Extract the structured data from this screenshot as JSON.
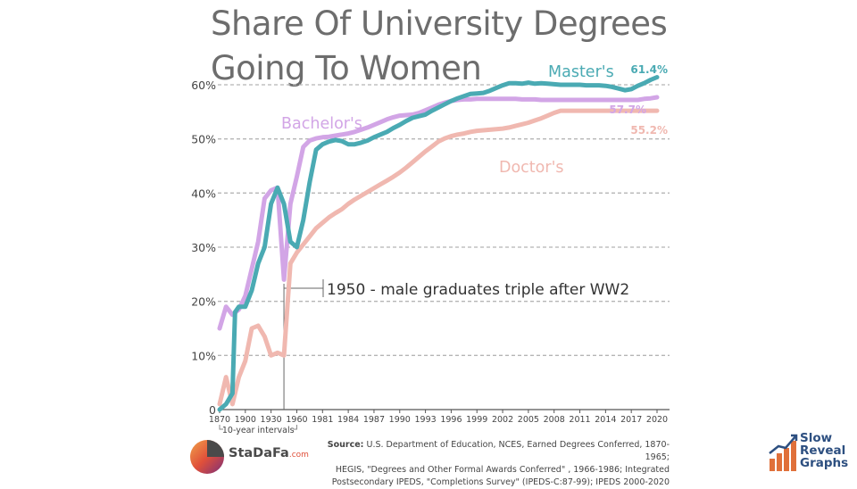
{
  "title": [
    "Share Of University Degrees",
    "Going To Women"
  ],
  "source_label": "Source:",
  "source_lines": [
    "U.S. Department of Education, NCES, Earned Degrees Conferred, 1870-1965;",
    "HEGIS, \"Degrees and Other Formal Awards Conferred\" , 1966-1986; Integrated",
    "Postsecondary IPEDS, \"Completions Survey\" (IPEDS-C:87-99); IPEDS 2000-2020"
  ],
  "brand_left": {
    "name": "StaDaFa",
    "suffix": ".com"
  },
  "brand_right": {
    "lines": [
      "Slow",
      "Reveal",
      "Graphs"
    ]
  },
  "colors": {
    "masters": "#4aaab3",
    "bachelors": "#d2a5e6",
    "doctors": "#f0b8b0",
    "grid": "#b5b5b5",
    "axis": "#555555",
    "annotation": "#555555"
  },
  "chart_data": {
    "type": "line",
    "title": "Share Of University Degrees Going To Women",
    "xlabel": "",
    "ylabel": "",
    "ylim": [
      0,
      60
    ],
    "yticks": [
      0,
      10,
      20,
      30,
      40,
      50,
      60
    ],
    "ytick_labels": [
      "0",
      "10%",
      "20%",
      "30%",
      "40%",
      "50%",
      "60%"
    ],
    "xtick_labels": [
      "1870",
      "1900",
      "1930",
      "1960",
      "1981",
      "1984",
      "1987",
      "1990",
      "1993",
      "1996",
      "1999",
      "2002",
      "2005",
      "2008",
      "2011",
      "2014",
      "2017",
      "2020"
    ],
    "x_note": "10-year intervals",
    "annotation": "1950 - male graduates triple after WW2",
    "annotation_x_index": 5,
    "grid": true,
    "series": [
      {
        "name": "Master's",
        "end_label": "61.4%",
        "x": [
          0,
          0.5,
          1,
          1.2,
          1.5,
          2,
          2.5,
          3,
          3.5,
          4,
          4.5,
          5,
          5.5,
          6,
          6.5,
          7,
          7.5,
          8,
          8.5,
          9,
          9.5,
          10,
          10.5,
          11,
          11.5,
          12,
          12.5,
          13,
          13.5,
          14,
          14.5,
          15,
          15.5,
          16,
          16.5,
          17,
          17.5,
          18,
          18.5,
          19,
          19.5,
          20,
          20.5,
          21,
          21.5,
          22,
          22.5,
          23,
          23.5,
          24,
          24.5,
          25,
          25.5,
          26,
          26.5,
          27,
          27.5,
          28,
          28.5,
          29,
          29.5,
          30,
          30.5,
          31,
          31.5,
          32,
          32.5,
          33,
          33.5,
          34
        ],
        "values": [
          0,
          1,
          3,
          18,
          19,
          19,
          22,
          27,
          30,
          38,
          41,
          38,
          31,
          30,
          35,
          42,
          48,
          49,
          49.5,
          49.8,
          49.6,
          49,
          49,
          49.3,
          49.7,
          50.3,
          50.8,
          51.3,
          52,
          52.6,
          53.3,
          53.9,
          54.2,
          54.5,
          55.2,
          55.8,
          56.4,
          57,
          57.5,
          57.9,
          58.3,
          58.4,
          58.5,
          58.9,
          59.4,
          59.9,
          60.3,
          60.3,
          60.2,
          60.4,
          60.2,
          60.3,
          60.2,
          60.1,
          60,
          60,
          60,
          60,
          59.9,
          59.9,
          59.9,
          59.8,
          59.6,
          59.3,
          59,
          59.2,
          59.8,
          60.3,
          60.9,
          61.4
        ]
      },
      {
        "name": "Bachelor's",
        "end_label": "57.7%",
        "x": [
          0,
          0.5,
          1,
          1.5,
          2,
          2.5,
          3,
          3.5,
          4,
          4.5,
          5,
          5.5,
          6,
          6.5,
          7,
          7.5,
          8,
          8.5,
          9,
          9.5,
          10,
          10.5,
          11,
          11.5,
          12,
          12.5,
          13,
          13.5,
          14,
          14.5,
          15,
          15.5,
          16,
          16.5,
          17,
          17.5,
          18,
          18.5,
          19,
          19.5,
          20,
          20.5,
          21,
          21.5,
          22,
          22.5,
          23,
          23.5,
          24,
          24.5,
          25,
          25.5,
          26,
          26.5,
          27,
          27.5,
          28,
          28.5,
          29,
          29.5,
          30,
          30.5,
          31,
          31.5,
          32,
          32.5,
          33,
          33.5,
          34
        ],
        "values": [
          15,
          19,
          17.5,
          18.5,
          21,
          26,
          31,
          39,
          40.5,
          41,
          24,
          38,
          43,
          48.5,
          49.7,
          50.1,
          50.3,
          50.4,
          50.6,
          50.8,
          51,
          51.3,
          51.7,
          52.1,
          52.6,
          53.1,
          53.6,
          54,
          54.3,
          54.4,
          54.5,
          54.8,
          55.3,
          55.8,
          56.3,
          56.7,
          57,
          57.2,
          57.3,
          57.3,
          57.4,
          57.4,
          57.4,
          57.4,
          57.4,
          57.4,
          57.4,
          57.3,
          57.3,
          57.3,
          57.2,
          57.2,
          57.2,
          57.2,
          57.2,
          57.2,
          57.2,
          57.2,
          57.2,
          57.2,
          57.2,
          57.2,
          57.2,
          57.2,
          57.2,
          57.2,
          57.4,
          57.5,
          57.7
        ]
      },
      {
        "name": "Doctor's",
        "end_label": "55.2%",
        "x": [
          0,
          0.5,
          1,
          1.5,
          2,
          2.5,
          3,
          3.5,
          4,
          4.5,
          5,
          5.5,
          6,
          6.5,
          7,
          7.5,
          8,
          8.5,
          9,
          9.5,
          10,
          10.5,
          11,
          11.5,
          12,
          12.5,
          13,
          13.5,
          14,
          14.5,
          15,
          15.5,
          16,
          16.5,
          17,
          17.5,
          18,
          18.5,
          19,
          19.5,
          20,
          20.5,
          21,
          21.5,
          22,
          22.5,
          23,
          23.5,
          24,
          24.5,
          25,
          25.5,
          26,
          26.5,
          27,
          27.5,
          28,
          28.5,
          29,
          29.5,
          30,
          30.5,
          31,
          31.5,
          32,
          32.5,
          33,
          33.5,
          34
        ],
        "values": [
          1,
          6,
          1,
          6,
          9,
          15,
          15.5,
          13.5,
          10,
          10.5,
          10,
          27,
          29,
          30.5,
          32,
          33.5,
          34.5,
          35.5,
          36.3,
          37,
          38,
          38.8,
          39.5,
          40.2,
          40.9,
          41.6,
          42.3,
          43,
          43.8,
          44.7,
          45.7,
          46.7,
          47.7,
          48.6,
          49.5,
          50.1,
          50.5,
          50.8,
          51,
          51.3,
          51.5,
          51.6,
          51.7,
          51.8,
          51.9,
          52.1,
          52.4,
          52.7,
          53,
          53.4,
          53.8,
          54.3,
          54.8,
          55.2,
          55.2,
          55.2,
          55.2,
          55.2,
          55.2,
          55.2,
          55.2,
          55.2,
          55.2,
          55.2,
          55.2,
          55.2,
          55.2,
          55.2,
          55.2
        ]
      }
    ]
  }
}
